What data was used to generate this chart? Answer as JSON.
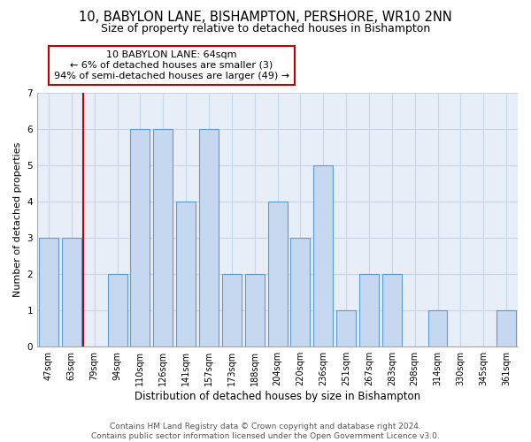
{
  "title": "10, BABYLON LANE, BISHAMPTON, PERSHORE, WR10 2NN",
  "subtitle": "Size of property relative to detached houses in Bishampton",
  "xlabel": "Distribution of detached houses by size in Bishampton",
  "ylabel": "Number of detached properties",
  "footer_line1": "Contains HM Land Registry data © Crown copyright and database right 2024.",
  "footer_line2": "Contains public sector information licensed under the Open Government Licence v3.0.",
  "categories": [
    "47sqm",
    "63sqm",
    "79sqm",
    "94sqm",
    "110sqm",
    "126sqm",
    "141sqm",
    "157sqm",
    "173sqm",
    "188sqm",
    "204sqm",
    "220sqm",
    "236sqm",
    "251sqm",
    "267sqm",
    "283sqm",
    "298sqm",
    "314sqm",
    "330sqm",
    "345sqm",
    "361sqm"
  ],
  "values": [
    3,
    3,
    0,
    2,
    6,
    6,
    4,
    6,
    2,
    2,
    4,
    3,
    5,
    1,
    2,
    2,
    0,
    1,
    0,
    0,
    1
  ],
  "bar_color": "#c5d8f0",
  "bar_edge_color": "#5b9bd5",
  "highlight_bar_edge_color": "#c00000",
  "annotation_box_text": "10 BABYLON LANE: 64sqm\n← 6% of detached houses are smaller (3)\n94% of semi-detached houses are larger (49) →",
  "annotation_box_edge_color": "#c00000",
  "red_line_x": 1.5,
  "ylim": [
    0,
    7
  ],
  "yticks": [
    0,
    1,
    2,
    3,
    4,
    5,
    6,
    7
  ],
  "grid_color": "#c8d4e8",
  "background_color": "#e8eef8",
  "title_fontsize": 10.5,
  "subtitle_fontsize": 9,
  "xlabel_fontsize": 8.5,
  "ylabel_fontsize": 8,
  "tick_fontsize": 7,
  "annotation_fontsize": 8,
  "footer_fontsize": 6.5
}
